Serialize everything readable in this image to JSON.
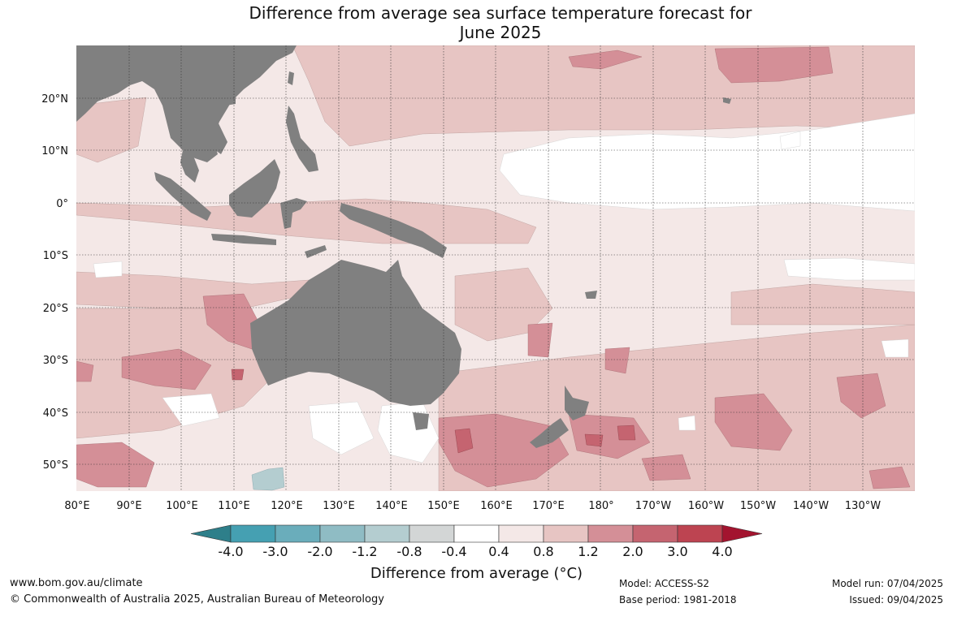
{
  "title_line1": "Difference from average sea surface temperature forecast for",
  "title_line2": "June 2025",
  "lat_labels": [
    "20°N",
    "10°N",
    "0°",
    "10°S",
    "20°S",
    "30°S",
    "40°S",
    "50°S"
  ],
  "lon_labels": [
    "80°E",
    "90°E",
    "100°E",
    "110°E",
    "120°E",
    "130°E",
    "140°E",
    "150°E",
    "160°E",
    "170°E",
    "180°",
    "170°W",
    "160°W",
    "150°W",
    "140°W",
    "130°W"
  ],
  "colorbar": {
    "title": "Difference from average (°C)",
    "tick_labels": [
      "-4.0",
      "-3.0",
      "-2.0",
      "-1.2",
      "-0.8",
      "-0.4",
      "0.4",
      "0.8",
      "1.2",
      "2.0",
      "3.0",
      "4.0"
    ],
    "colors": [
      "#2e7f8a",
      "#45a0b2",
      "#6aadbb",
      "#8fbcc4",
      "#b4cdd0",
      "#d3d6d6",
      "#ffffff",
      "#f4e8e7",
      "#e7c5c3",
      "#d48f97",
      "#c56470",
      "#bd4451",
      "#a3142f"
    ]
  },
  "footer": {
    "website": "www.bom.gov.au/climate",
    "copyright": "© Commonwealth of Australia 2025, Australian Bureau of Meteorology",
    "model": "Model: ACCESS-S2",
    "base_period": "Base period: 1981-2018",
    "model_run": "Model run: 07/04/2025",
    "issued": "Issued: 09/04/2025"
  },
  "colors": {
    "land": "#808080",
    "anom_0_4_0_8": "#f4e8e7",
    "anom_0_8_1_2": "#e7c5c3",
    "anom_1_2_2_0": "#d48f97",
    "anom_2_0_3_0": "#c56470",
    "anom_neg_0_8": "#b4cdd0"
  }
}
